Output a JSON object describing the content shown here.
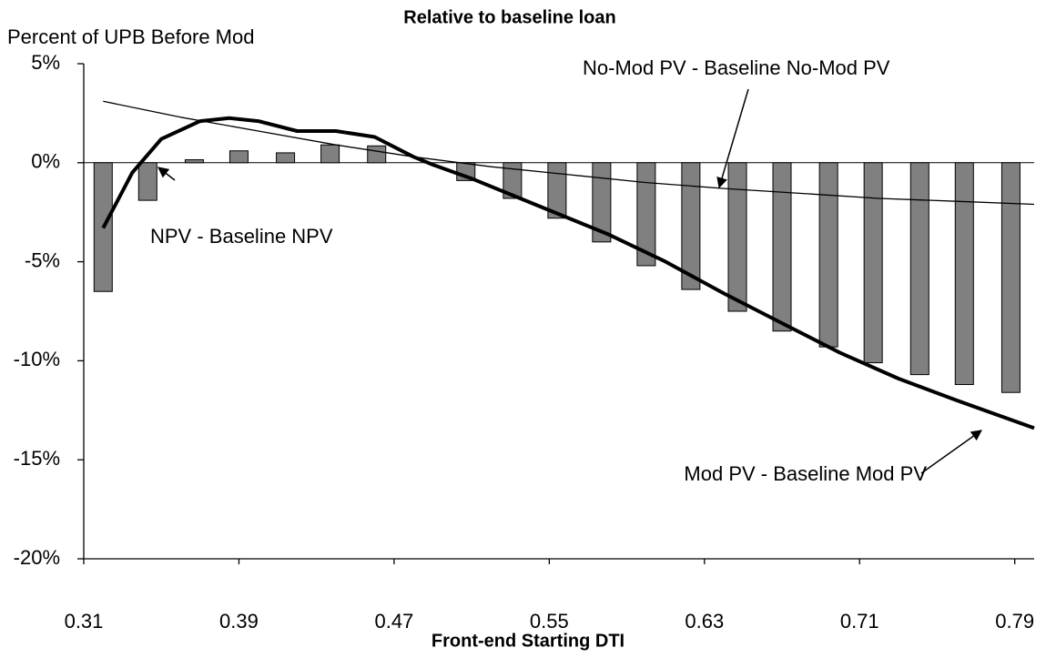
{
  "chart_data": {
    "type": "combo",
    "title": "Relative to baseline loan",
    "y_label": "Percent of UPB Before Mod",
    "x_label": "Front-end Starting DTI",
    "xlim": [
      0.31,
      0.8
    ],
    "xticks": [
      0.31,
      0.39,
      0.47,
      0.55,
      0.63,
      0.71,
      0.79
    ],
    "ylim": [
      -20,
      5
    ],
    "yticks": [
      {
        "value": -20,
        "label": "-20%"
      },
      {
        "value": -15,
        "label": "-15%"
      },
      {
        "value": -10,
        "label": "-10%"
      },
      {
        "value": -5,
        "label": "-5%"
      },
      {
        "value": 0,
        "label": "0%"
      },
      {
        "value": 5,
        "label": "5%"
      }
    ],
    "grid": false,
    "series": [
      {
        "name": "NPV - Baseline NPV",
        "type": "bar",
        "color": "#808080",
        "x": [
          0.32,
          0.343,
          0.367,
          0.39,
          0.414,
          0.437,
          0.461,
          0.484,
          0.507,
          0.531,
          0.554,
          0.577,
          0.6,
          0.623,
          0.647,
          0.67,
          0.694,
          0.717,
          0.741,
          0.764,
          0.788
        ],
        "values": [
          -6.5,
          -1.9,
          0.15,
          0.6,
          0.5,
          0.9,
          0.85,
          0,
          -0.9,
          -1.8,
          -2.8,
          -4.0,
          -5.2,
          -6.4,
          -7.5,
          -8.5,
          -9.3,
          -10.1,
          -10.7,
          -11.2,
          -11.6
        ]
      },
      {
        "name": "Mod PV - Baseline Mod PV",
        "type": "line",
        "color": "#000000",
        "width": 4,
        "x": [
          0.32,
          0.335,
          0.35,
          0.37,
          0.385,
          0.4,
          0.42,
          0.44,
          0.46,
          0.48,
          0.49,
          0.51,
          0.53,
          0.55,
          0.58,
          0.61,
          0.64,
          0.67,
          0.7,
          0.73,
          0.76,
          0.8
        ],
        "values": [
          -3.3,
          -0.5,
          1.2,
          2.1,
          2.25,
          2.1,
          1.6,
          1.6,
          1.3,
          0.3,
          -0.1,
          -0.8,
          -1.6,
          -2.4,
          -3.6,
          -5.0,
          -6.6,
          -8.1,
          -9.6,
          -10.9,
          -12.0,
          -13.4
        ]
      },
      {
        "name": "No-Mod PV - Baseline No-Mod PV",
        "type": "line",
        "color": "#000000",
        "width": 1.3,
        "x": [
          0.32,
          0.36,
          0.4,
          0.44,
          0.48,
          0.52,
          0.56,
          0.6,
          0.64,
          0.68,
          0.72,
          0.76,
          0.8
        ],
        "values": [
          3.1,
          2.3,
          1.6,
          0.9,
          0.3,
          -0.2,
          -0.6,
          -1.0,
          -1.3,
          -1.55,
          -1.8,
          -1.95,
          -2.1
        ]
      }
    ]
  }
}
